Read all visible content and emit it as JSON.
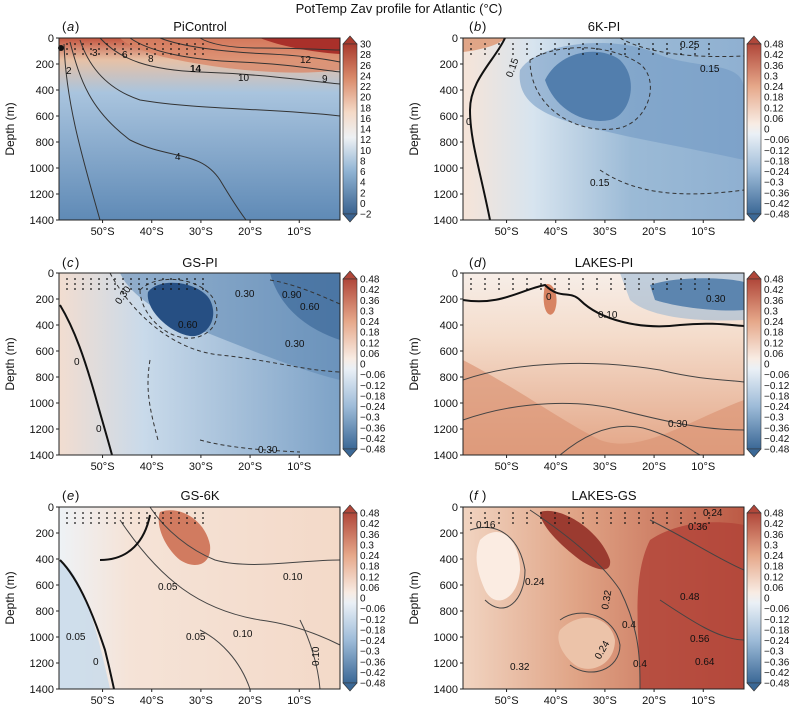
{
  "figure": {
    "title": "PotTemp Zav profile for Atlantic (°C)"
  },
  "axes": {
    "ylabel": "Depth (m)",
    "y_ticks": [
      "0",
      "200",
      "400",
      "600",
      "800",
      "1000",
      "1200",
      "1400"
    ],
    "x_ticks": [
      "50°S",
      "40°S",
      "30°S",
      "20°S",
      "10°S"
    ]
  },
  "colorbars": {
    "absolute": [
      "30",
      "28",
      "26",
      "24",
      "22",
      "20",
      "18",
      "16",
      "14",
      "12",
      "10",
      "8",
      "6",
      "4",
      "2",
      "0",
      "−2"
    ],
    "anomaly": [
      "0.48",
      "0.42",
      "0.36",
      "0.3",
      "0.24",
      "0.18",
      "0.12",
      "0.06",
      "0",
      "−0.06",
      "−0.12",
      "−0.18",
      "−0.24",
      "−0.3",
      "−0.36",
      "−0.42",
      "−0.48"
    ]
  },
  "panels": [
    {
      "id": "a",
      "letter": "a",
      "title": "PiControl",
      "contour_labels": [
        "2",
        "3",
        "6",
        "8",
        "14",
        "12",
        "10",
        "9",
        "4"
      ]
    },
    {
      "id": "b",
      "letter": "b",
      "title": "6K-PI",
      "contour_labels": [
        "0.15",
        "0.25",
        "0",
        "0.15",
        "0.15"
      ]
    },
    {
      "id": "c",
      "letter": "c",
      "title": "GS-PI",
      "contour_labels": [
        "0.30",
        "0.60",
        "0.30",
        "0.60",
        "0.90",
        "0.30",
        "0.30",
        "0",
        "0"
      ]
    },
    {
      "id": "d",
      "letter": "d",
      "title": "LAKES-PI",
      "contour_labels": [
        "0",
        "0.10",
        "0.30",
        "0.30"
      ]
    },
    {
      "id": "e",
      "letter": "e",
      "title": "GS-6K",
      "contour_labels": [
        "0.10",
        "0.05",
        "0.10",
        "0.05",
        "0.10",
        "0.05",
        "0"
      ]
    },
    {
      "id": "f",
      "letter": "f",
      "title": "LAKES-GS",
      "contour_labels": [
        "0.16",
        "0.24",
        "0.36",
        "0.24",
        "0.48",
        "0.32",
        "0.4",
        "0.24",
        "0.56",
        "0.32",
        "0.64",
        "0.4"
      ]
    }
  ],
  "chart_data": [
    {
      "type": "heatmap",
      "title": "PiControl",
      "ylabel": "Depth (m)",
      "xlim": [
        "58°S",
        "0°"
      ],
      "ylim": [
        1400,
        0
      ],
      "colorbar_range": [
        -2,
        30
      ],
      "description_values": {
        "surface_max": 30,
        "deep_min": 2
      },
      "labeled_isotherms": [
        2,
        3,
        4,
        6,
        8,
        9,
        10,
        12,
        14
      ]
    },
    {
      "type": "heatmap",
      "title": "6K-PI",
      "colorbar_range": [
        -0.48,
        0.48
      ],
      "labeled_contours": [
        -0.15,
        0.25,
        0
      ]
    },
    {
      "type": "heatmap",
      "title": "GS-PI",
      "colorbar_range": [
        -0.48,
        0.48
      ],
      "labeled_contours": [
        -0.3,
        -0.6,
        -0.9,
        0
      ]
    },
    {
      "type": "heatmap",
      "title": "LAKES-PI",
      "colorbar_range": [
        -0.48,
        0.48
      ],
      "labeled_contours": [
        0,
        -0.1,
        0.3
      ]
    },
    {
      "type": "heatmap",
      "title": "GS-6K",
      "colorbar_range": [
        -0.48,
        0.48
      ],
      "labeled_contours": [
        0.1,
        0.05,
        -0.1,
        0
      ]
    },
    {
      "type": "heatmap",
      "title": "LAKES-GS",
      "colorbar_range": [
        -0.48,
        0.48
      ],
      "labeled_contours": [
        0.16,
        0.24,
        0.32,
        0.36,
        0.4,
        0.48,
        0.56,
        0.64
      ]
    }
  ]
}
